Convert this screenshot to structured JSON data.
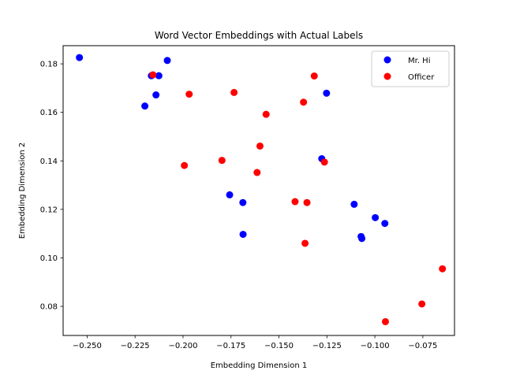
{
  "chart_data": {
    "type": "scatter",
    "title": "Word Vector Embeddings with Actual Labels",
    "xlabel": "Embedding Dimension 1",
    "ylabel": "Embedding Dimension 2",
    "xlim": [
      -0.2625,
      -0.0585
    ],
    "ylim": [
      0.068,
      0.1875
    ],
    "xticks": [
      -0.25,
      -0.225,
      -0.2,
      -0.175,
      -0.15,
      -0.125,
      -0.1,
      -0.075
    ],
    "xtick_labels": [
      "−0.250",
      "−0.225",
      "−0.200",
      "−0.175",
      "−0.150",
      "−0.125",
      "−0.100",
      "−0.075"
    ],
    "yticks": [
      0.08,
      0.1,
      0.12,
      0.14,
      0.16,
      0.18
    ],
    "ytick_labels": [
      "0.08",
      "0.10",
      "0.12",
      "0.14",
      "0.16",
      "0.18"
    ],
    "grid": false,
    "legend_position": "top-right",
    "series": [
      {
        "name": "Mr. Hi",
        "color": "#0000ff",
        "points": [
          [
            -0.254,
            0.1826
          ],
          [
            -0.2082,
            0.1814
          ],
          [
            -0.2165,
            0.1751
          ],
          [
            -0.2126,
            0.1751
          ],
          [
            -0.2141,
            0.1672
          ],
          [
            -0.2199,
            0.1626
          ],
          [
            -0.1252,
            0.1679
          ],
          [
            -0.1277,
            0.1409
          ],
          [
            -0.1757,
            0.126
          ],
          [
            -0.1688,
            0.1228
          ],
          [
            -0.1108,
            0.1221
          ],
          [
            -0.0998,
            0.1166
          ],
          [
            -0.0948,
            0.1142
          ],
          [
            -0.1687,
            0.1097
          ],
          [
            -0.1072,
            0.1088
          ],
          [
            -0.1068,
            0.108
          ]
        ]
      },
      {
        "name": "Officer",
        "color": "#ff0000",
        "points": [
          [
            -0.2157,
            0.1755
          ],
          [
            -0.1968,
            0.1675
          ],
          [
            -0.1734,
            0.1682
          ],
          [
            -0.1316,
            0.175
          ],
          [
            -0.1372,
            0.1642
          ],
          [
            -0.1567,
            0.1592
          ],
          [
            -0.1599,
            0.1461
          ],
          [
            -0.1993,
            0.1381
          ],
          [
            -0.1797,
            0.1402
          ],
          [
            -0.1614,
            0.1352
          ],
          [
            -0.1263,
            0.1395
          ],
          [
            -0.1416,
            0.1232
          ],
          [
            -0.1354,
            0.1228
          ],
          [
            -0.1364,
            0.106
          ],
          [
            -0.0648,
            0.0955
          ],
          [
            -0.0755,
            0.081
          ],
          [
            -0.0945,
            0.0737
          ]
        ]
      }
    ]
  }
}
